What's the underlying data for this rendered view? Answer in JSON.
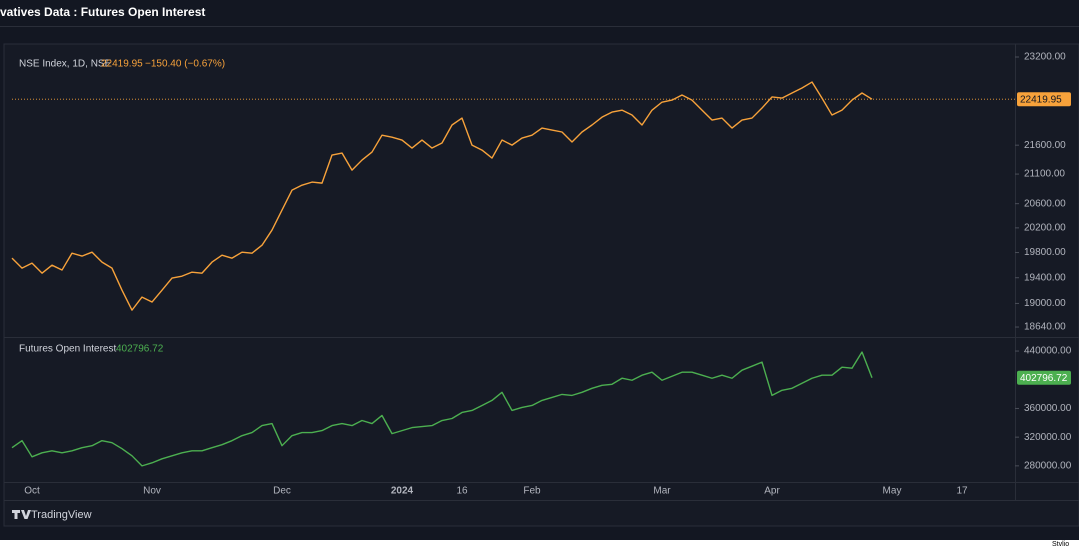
{
  "header": {
    "title": "vatives Data : Futures Open Interest"
  },
  "branding": "TradingView",
  "watermark": "Stvlio",
  "chart_data": [
    {
      "type": "line",
      "title": "NSE Index, 1D, NSE",
      "change": "−150.40 (−0.67%)",
      "color": "#f7a23b",
      "log_scale": true,
      "ylim": [
        18490,
        23370
      ],
      "yticks": [
        {
          "value": 23200,
          "label": "23200.00"
        },
        {
          "value": 21600,
          "label": "21600.00"
        },
        {
          "value": 21100,
          "label": "21100.00"
        },
        {
          "value": 20600,
          "label": "20600.00"
        },
        {
          "value": 20200,
          "label": "20200.00"
        },
        {
          "value": 19800,
          "label": "19800.00"
        },
        {
          "value": 19400,
          "label": "19400.00"
        },
        {
          "value": 19000,
          "label": "19000.00"
        },
        {
          "value": 18640,
          "label": "18640.00"
        }
      ],
      "values": [
        19710,
        19551,
        19630,
        19472,
        19598,
        19521,
        19790,
        19743,
        19806,
        19647,
        19551,
        19205,
        18897,
        19098,
        19021,
        19205,
        19395,
        19425,
        19488,
        19472,
        19647,
        19757,
        19710,
        19806,
        19790,
        19918,
        20164,
        20493,
        20827,
        20911,
        20963,
        20946,
        21428,
        21463,
        21168,
        21341,
        21480,
        21776,
        21741,
        21690,
        21550,
        21690,
        21550,
        21638,
        21956,
        22080,
        21601,
        21514,
        21376,
        21690,
        21601,
        21725,
        21776,
        21902,
        21867,
        21832,
        21655,
        21832,
        21956,
        22096,
        22187,
        22222,
        22134,
        21956,
        22222,
        22367,
        22404,
        22496,
        22404,
        22222,
        22045,
        22080,
        21902,
        22045,
        22080,
        22260,
        22461,
        22440,
        22533,
        22625,
        22734,
        22440,
        22134,
        22222,
        22404,
        22533,
        22419.95,
        null,
        null,
        null,
        null,
        null,
        null,
        null,
        null,
        null,
        null,
        null,
        null,
        null,
        null
      ]
    },
    {
      "type": "line",
      "title": "Futures Open Interest",
      "color": "#4caf50",
      "ylim": [
        257500,
        455400
      ],
      "yticks": [
        {
          "value": 440000,
          "label": "440000.00"
        },
        {
          "value": 360000,
          "label": "360000.00"
        },
        {
          "value": 320000,
          "label": "320000.00"
        },
        {
          "value": 280000,
          "label": "280000.00"
        }
      ],
      "categories": [
        null,
        null,
        "Oct",
        null,
        null,
        null,
        null,
        null,
        null,
        null,
        null,
        null,
        null,
        null,
        "Nov",
        null,
        null,
        null,
        null,
        null,
        null,
        null,
        null,
        null,
        null,
        null,
        null,
        "Dec",
        null,
        null,
        null,
        null,
        null,
        null,
        null,
        null,
        null,
        null,
        null,
        "2024",
        null,
        null,
        null,
        null,
        null,
        "16",
        null,
        null,
        null,
        null,
        null,
        null,
        "Feb",
        null,
        null,
        null,
        null,
        null,
        null,
        null,
        null,
        null,
        null,
        null,
        null,
        "Mar",
        null,
        null,
        null,
        null,
        null,
        null,
        null,
        null,
        null,
        null,
        "Apr",
        null,
        null,
        null,
        null,
        null,
        null,
        null,
        null,
        null,
        null,
        null,
        "May",
        null,
        null,
        null,
        null,
        null,
        null,
        "17",
        null,
        null,
        null,
        null,
        null
      ],
      "values": [
        305300,
        315100,
        292600,
        298200,
        301000,
        298200,
        301000,
        305300,
        308100,
        315100,
        312300,
        303900,
        294000,
        280000,
        284200,
        289800,
        294000,
        298200,
        301000,
        301000,
        305300,
        309500,
        315100,
        322100,
        326400,
        336100,
        338900,
        308100,
        322100,
        326400,
        326400,
        329100,
        336100,
        338900,
        336100,
        343200,
        338900,
        350200,
        324900,
        329100,
        333300,
        334700,
        336100,
        343200,
        346000,
        354400,
        357200,
        364200,
        371200,
        382500,
        357200,
        361400,
        364200,
        371200,
        375400,
        379600,
        378200,
        382500,
        388100,
        392300,
        393700,
        402100,
        399300,
        406300,
        410500,
        399300,
        404900,
        410500,
        410500,
        406300,
        402100,
        406300,
        402100,
        413300,
        418900,
        424600,
        378200,
        385300,
        388100,
        395100,
        402100,
        406300,
        406300,
        417500,
        416100,
        438600,
        402796.72,
        null,
        null,
        null,
        null,
        null,
        null,
        null,
        null,
        null,
        null,
        null,
        null,
        null,
        null
      ]
    }
  ]
}
